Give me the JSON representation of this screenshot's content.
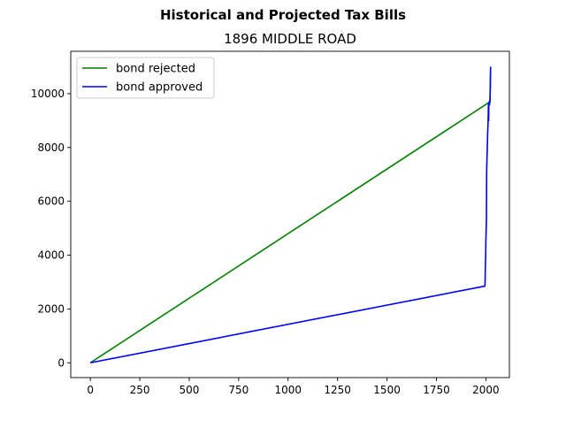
{
  "figure": {
    "suptitle": "Historical and Projected Tax Bills",
    "title": "1896 MIDDLE ROAD"
  },
  "chart_data": {
    "type": "line",
    "title": "1896 MIDDLE ROAD",
    "suptitle": "Historical and Projected Tax Bills",
    "xlabel": "",
    "ylabel": "",
    "xlim": [
      -99,
      2119
    ],
    "ylim": [
      -550,
      11575
    ],
    "xticks": [
      0,
      250,
      500,
      750,
      1000,
      1250,
      1500,
      1750,
      2000
    ],
    "yticks": [
      0,
      2000,
      4000,
      6000,
      8000,
      10000
    ],
    "grid": false,
    "legend_position": "upper left",
    "series": [
      {
        "name": "bond rejected",
        "color": "#008000",
        "x": [
          0,
          2021,
          2022,
          2023,
          2024
        ],
        "y": [
          0,
          9700,
          10100,
          10550,
          11000
        ]
      },
      {
        "name": "bond approved",
        "color": "#0000ff",
        "x": [
          0,
          1995,
          1996,
          1997,
          1998,
          1999,
          2000,
          2001,
          2002,
          2003,
          2004,
          2005,
          2006,
          2007,
          2008,
          2009,
          2010,
          2011,
          2012,
          2013,
          2014,
          2015,
          2016,
          2017,
          2018,
          2019,
          2020,
          2021,
          2022,
          2023,
          2024
        ],
        "y": [
          0,
          2850,
          3000,
          3400,
          3700,
          4000,
          4500,
          4800,
          5100,
          5400,
          7100,
          7400,
          7700,
          7900,
          8200,
          8500,
          8700,
          8900,
          9200,
          9600,
          9000,
          9500,
          9600,
          9700,
          9700,
          9600,
          9700,
          9800,
          10200,
          10600,
          11000
        ]
      }
    ]
  }
}
